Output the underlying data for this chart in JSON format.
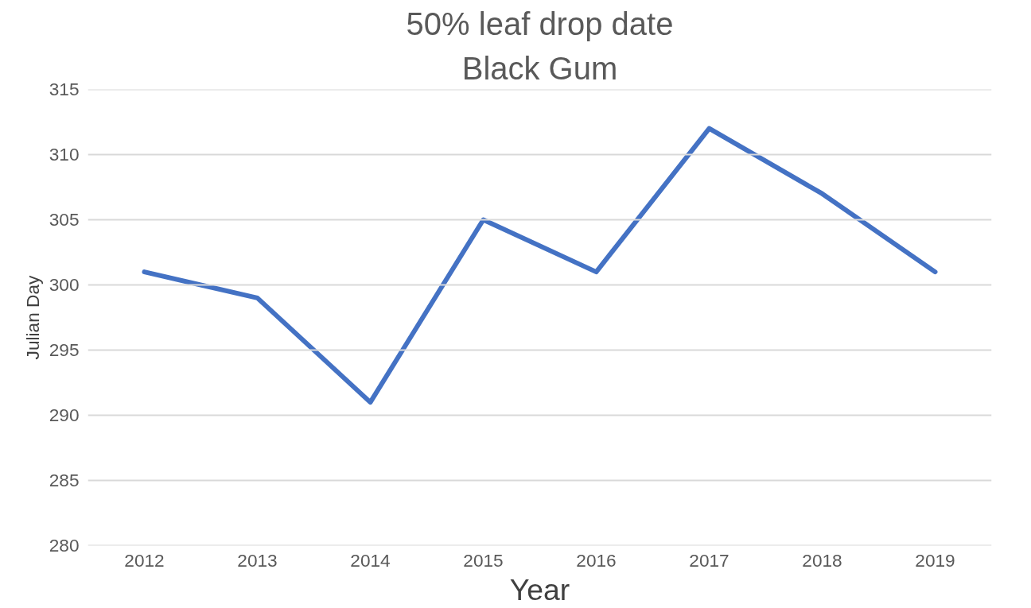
{
  "chart_data": {
    "type": "line",
    "title": "50% leaf drop date",
    "subtitle": "Black Gum",
    "xlabel": "Year",
    "ylabel": "Julian Day",
    "categories": [
      "2012",
      "2013",
      "2014",
      "2015",
      "2016",
      "2017",
      "2018",
      "2019"
    ],
    "series": [
      {
        "color": "#4472c4",
        "values": [
          301,
          299,
          291,
          305,
          301,
          312,
          307,
          301
        ]
      }
    ],
    "ylim": [
      280,
      315
    ],
    "yticks": [
      280,
      285,
      290,
      295,
      300,
      305,
      310,
      315
    ],
    "grid": "y",
    "marker": "none",
    "line_style": "solid"
  }
}
